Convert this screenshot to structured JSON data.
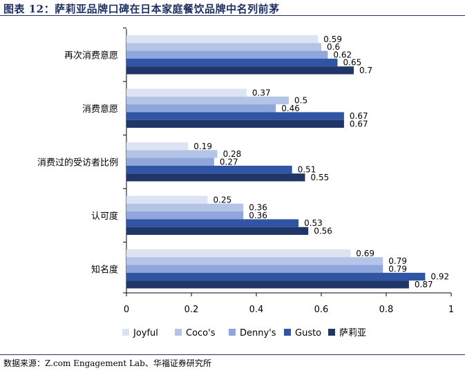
{
  "title": "图表 12：萨莉亚品牌口碑在日本家庭餐饮品牌中名列前茅",
  "source": "数据来源：Z.com Engagement Lab、华福证券研究所",
  "chart_data": {
    "type": "bar",
    "orientation": "horizontal",
    "categories": [
      "再次消费意愿",
      "消费意愿",
      "消费过的受访者比例",
      "认可度",
      "知名度"
    ],
    "series": [
      {
        "name": "Joyful",
        "color": "#dce3f3",
        "values": [
          0.59,
          0.37,
          0.19,
          0.25,
          0.69
        ]
      },
      {
        "name": "Coco's",
        "color": "#b3c4e7",
        "values": [
          0.6,
          0.5,
          0.28,
          0.36,
          0.79
        ]
      },
      {
        "name": "Denny's",
        "color": "#8fa6dc",
        "values": [
          0.62,
          0.46,
          0.27,
          0.36,
          0.79
        ]
      },
      {
        "name": "Gusto",
        "color": "#2f55a4",
        "values": [
          0.65,
          0.67,
          0.51,
          0.53,
          0.92
        ]
      },
      {
        "name": "萨莉亚",
        "color": "#1f3666",
        "values": [
          0.7,
          0.67,
          0.55,
          0.56,
          0.87
        ]
      }
    ],
    "xlim": [
      0,
      1
    ],
    "xticks": [
      "0",
      "0.2",
      "0.4",
      "0.6",
      "0.8",
      "1"
    ],
    "legend_position": "bottom",
    "grid": false
  }
}
